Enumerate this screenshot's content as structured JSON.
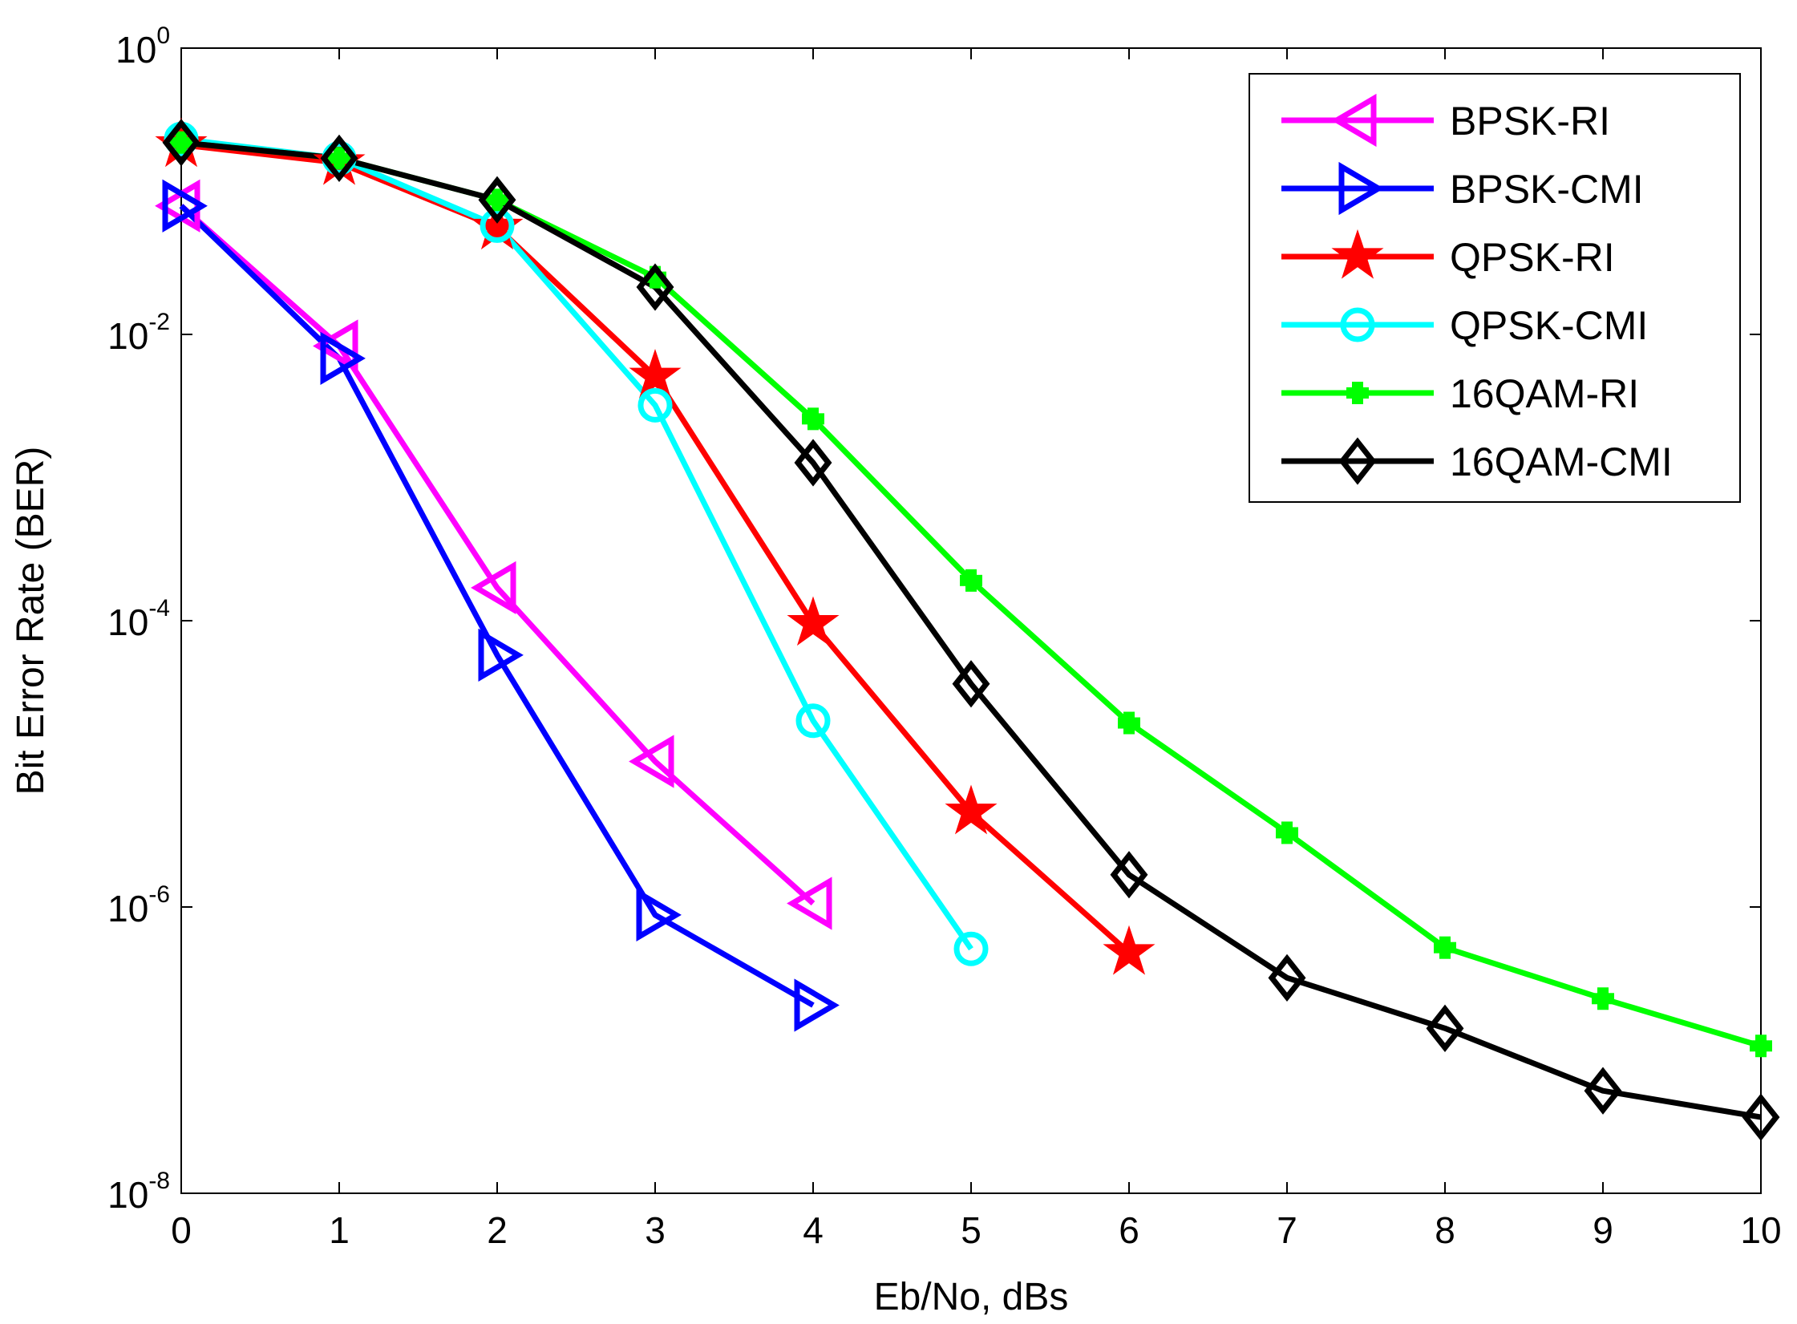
{
  "chart_data": {
    "type": "line",
    "title": "",
    "xlabel": "Eb/No, dBs",
    "ylabel": "Bit Error Rate (BER)",
    "xlim": [
      0,
      10
    ],
    "ylim": [
      1e-08,
      1
    ],
    "yscale": "log",
    "grid": false,
    "legend_position": "top-right",
    "x_ticks": [
      {
        "label": "0",
        "value": 0
      },
      {
        "label": "1",
        "value": 1
      },
      {
        "label": "2",
        "value": 2
      },
      {
        "label": "3",
        "value": 3
      },
      {
        "label": "4",
        "value": 4
      },
      {
        "label": "5",
        "value": 5
      },
      {
        "label": "6",
        "value": 6
      },
      {
        "label": "7",
        "value": 7
      },
      {
        "label": "8",
        "value": 8
      },
      {
        "label": "9",
        "value": 9
      },
      {
        "label": "10",
        "value": 10
      }
    ],
    "y_ticks": [
      {
        "base": "10",
        "exp": "0",
        "value": 1
      },
      {
        "base": "10",
        "exp": "-2",
        "value": 0.01
      },
      {
        "base": "10",
        "exp": "-4",
        "value": 0.0001
      },
      {
        "base": "10",
        "exp": "-6",
        "value": 1e-06
      },
      {
        "base": "10",
        "exp": "-8",
        "value": 1e-08
      }
    ],
    "series": [
      {
        "name": "BPSK-RI",
        "color": "#ff00ff",
        "marker": "triangle-left",
        "x": [
          0,
          1,
          2,
          3,
          4
        ],
        "y": [
          0.079,
          0.0083,
          0.00017,
          1.04e-05,
          1.06e-06
        ]
      },
      {
        "name": "BPSK-CMI",
        "color": "#0000ff",
        "marker": "triangle-right",
        "x": [
          0,
          1,
          2,
          3,
          4
        ],
        "y": [
          0.079,
          0.0068,
          5.75e-05,
          8.8e-07,
          2.06e-07
        ]
      },
      {
        "name": "QPSK-RI",
        "color": "#ff0000",
        "marker": "star",
        "x": [
          0,
          1,
          2,
          3,
          4,
          5,
          6
        ],
        "y": [
          0.211,
          0.158,
          0.056,
          0.0051,
          9.55e-05,
          4.6e-06,
          4.8e-07
        ]
      },
      {
        "name": "QPSK-CMI",
        "color": "#00ffff",
        "marker": "circle",
        "x": [
          0,
          1,
          2,
          3,
          4,
          5
        ],
        "y": [
          0.232,
          0.17,
          0.0575,
          0.0032,
          2e-05,
          5.1e-07
        ]
      },
      {
        "name": "16QAM-RI",
        "color": "#00ff00",
        "marker": "plus",
        "x": [
          0,
          1,
          2,
          3,
          4,
          5,
          6,
          7,
          8,
          9,
          10
        ],
        "y": [
          0.219,
          0.17,
          0.087,
          0.0251,
          0.00257,
          0.000191,
          1.93e-05,
          3.3e-06,
          5.2e-07,
          2.29e-07,
          1.07e-07
        ]
      },
      {
        "name": "16QAM-CMI",
        "color": "#000000",
        "marker": "diamond",
        "x": [
          0,
          1,
          2,
          3,
          4,
          5,
          6,
          7,
          8,
          9,
          10
        ],
        "y": [
          0.219,
          0.17,
          0.087,
          0.0214,
          0.00127,
          3.62e-05,
          1.68e-06,
          3.2e-07,
          1.42e-07,
          5.2e-08,
          3.4e-08
        ]
      }
    ]
  }
}
